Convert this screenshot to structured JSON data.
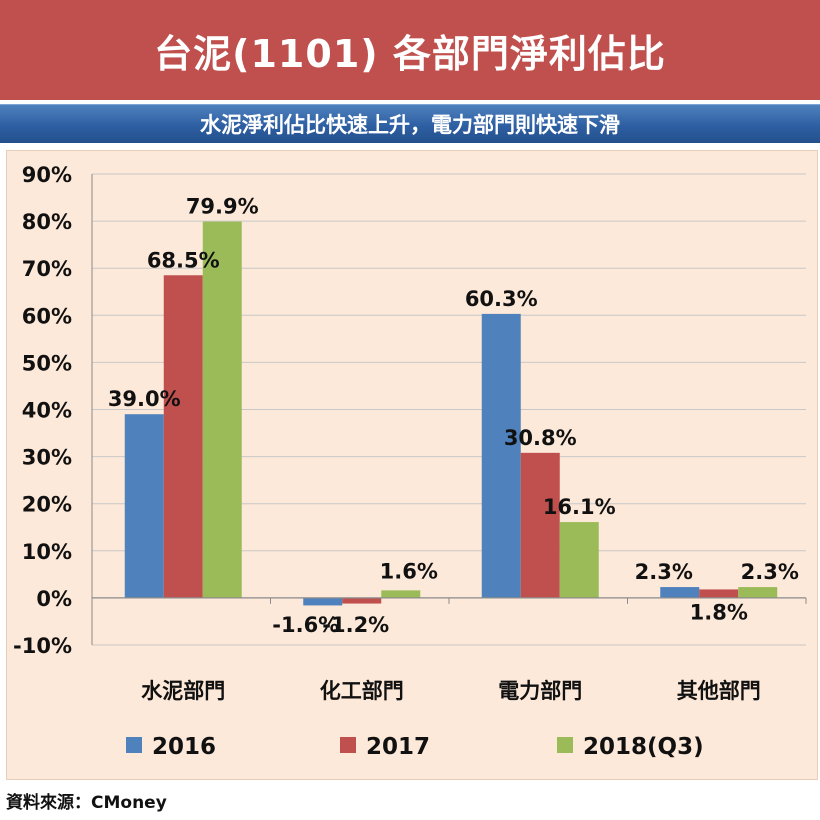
{
  "header": {
    "title": "台泥(1101) 各部門淨利佔比",
    "subtitle": "水泥淨利佔比快速上升，電力部門則快速下滑"
  },
  "footer": {
    "source": "資料來源：CMoney"
  },
  "colors": {
    "banner": "#c0504d",
    "subbar": "#2e5fa3",
    "panel": "#fde9d9"
  },
  "chart_data": {
    "type": "bar",
    "title": "台泥(1101) 各部門淨利佔比",
    "subtitle": "水泥淨利佔比快速上升，電力部門則快速下滑",
    "categories": [
      "水泥部門",
      "化工部門",
      "電力部門",
      "其他部門"
    ],
    "series": [
      {
        "name": "2016",
        "color": "#4f81bd",
        "values": [
          39.0,
          -1.6,
          60.3,
          2.3
        ],
        "labels": [
          "39.0%",
          "-1.6%",
          "60.3%",
          "2.3%"
        ]
      },
      {
        "name": "2017",
        "color": "#c0504d",
        "values": [
          68.5,
          -1.2,
          30.8,
          1.8
        ],
        "labels": [
          "68.5%",
          "-1.2%",
          "30.8%",
          "1.8%"
        ]
      },
      {
        "name": "2018(Q3)",
        "color": "#9bbb59",
        "values": [
          79.9,
          1.6,
          16.1,
          2.3
        ],
        "labels": [
          "79.9%",
          "1.6%",
          "16.1%",
          "2.3%"
        ]
      }
    ],
    "ylim": [
      -10,
      90
    ],
    "yticks": [
      -10,
      0,
      10,
      20,
      30,
      40,
      50,
      60,
      70,
      80,
      90
    ],
    "ytick_labels": [
      "-10%",
      "0%",
      "10%",
      "20%",
      "30%",
      "40%",
      "50%",
      "60%",
      "70%",
      "80%",
      "90%"
    ],
    "grid": true,
    "legend_position": "bottom"
  }
}
